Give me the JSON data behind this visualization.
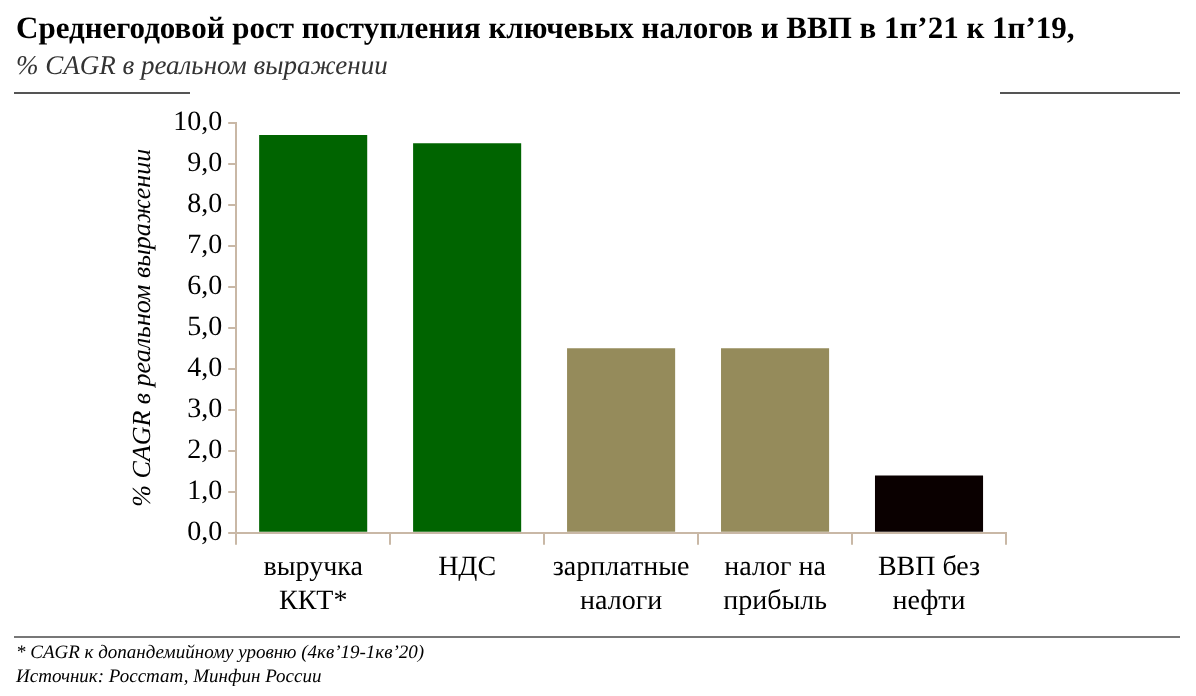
{
  "chart_data": {
    "type": "bar",
    "title": "Среднегодовой рост поступления ключевых налогов и ВВП в 1п’21 к 1п’19,",
    "subtitle": "% CAGR в реальном выражении",
    "ylabel": "% CAGR в реальном выражении",
    "categories": [
      "выручка\nККТ*",
      "НДС",
      "зарплатные\nналоги",
      "налог на\nприбыль",
      "ВВП без\nнефти"
    ],
    "values": [
      9.7,
      9.5,
      4.5,
      4.5,
      1.4
    ],
    "colors": [
      "#006400",
      "#006400",
      "#958b5b",
      "#958b5b",
      "#0a0000"
    ],
    "ylim": [
      0,
      10
    ],
    "yticks": [
      {
        "value": 0,
        "label": "0,0"
      },
      {
        "value": 1,
        "label": "1,0"
      },
      {
        "value": 2,
        "label": "2,0"
      },
      {
        "value": 3,
        "label": "3,0"
      },
      {
        "value": 4,
        "label": "4,0"
      },
      {
        "value": 5,
        "label": "5,0"
      },
      {
        "value": 6,
        "label": "6,0"
      },
      {
        "value": 7,
        "label": "7,0"
      },
      {
        "value": 8,
        "label": "8,0"
      },
      {
        "value": 9,
        "label": "9,0"
      },
      {
        "value": 10,
        "label": "10,0"
      }
    ],
    "grid": false,
    "legend": false,
    "annotations": [
      "* CAGR к допандемийному уровню (4кв’19-1кв’20)",
      "Источник: Росстат, Минфин России"
    ]
  }
}
